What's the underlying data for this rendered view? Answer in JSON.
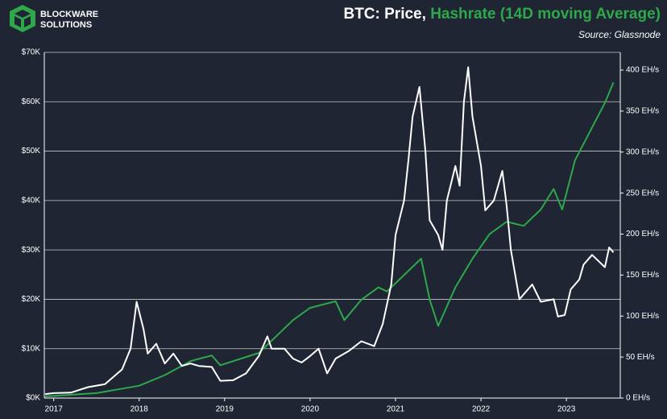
{
  "logo": {
    "line1": "BLOCKWARE",
    "line2": "SOLUTIONS"
  },
  "chart_data": {
    "type": "line",
    "title": "BTC: Price,",
    "source": "Source: Glassnode",
    "xlim": [
      2016.89,
      2023.63
    ],
    "xticks": [
      2017,
      2018,
      2019,
      2020,
      2021,
      2022,
      2023
    ],
    "ylim": [
      0,
      70000
    ],
    "yticks": [
      {
        "value": 0,
        "label": "$0K"
      },
      {
        "value": 10000,
        "label": "$10K"
      },
      {
        "value": 20000,
        "label": "$20K"
      },
      {
        "value": 30000,
        "label": "$30K"
      },
      {
        "value": 40000,
        "label": "$40K"
      },
      {
        "value": 50000,
        "label": "$50K"
      },
      {
        "value": 60000,
        "label": "$60K"
      },
      {
        "value": 70000,
        "label": "$70K"
      }
    ],
    "y2lim": [
      0,
      421.6
    ],
    "y2ticks": [
      {
        "value": 0,
        "label": "0 EH/s"
      },
      {
        "value": 50,
        "label": "50 EH/s"
      },
      {
        "value": 100,
        "label": "100 EH/s"
      },
      {
        "value": 150,
        "label": "150 EH/s"
      },
      {
        "value": 200,
        "label": "200 EH/s"
      },
      {
        "value": 250,
        "label": "250 EH/s"
      },
      {
        "value": 300,
        "label": "300 EH/s"
      },
      {
        "value": 350,
        "label": "350 EH/s"
      },
      {
        "value": 400,
        "label": "400 EH/s"
      }
    ],
    "grid": true,
    "series": [
      {
        "color": "#ffffff",
        "x": [
          2016.9,
          2017.0,
          2017.2,
          2017.4,
          2017.6,
          2017.7,
          2017.8,
          2017.9,
          2017.97,
          2018.05,
          2018.1,
          2018.2,
          2018.3,
          2018.4,
          2018.5,
          2018.6,
          2018.7,
          2018.85,
          2018.95,
          2019.1,
          2019.25,
          2019.4,
          2019.5,
          2019.55,
          2019.7,
          2019.8,
          2019.9,
          2020.0,
          2020.1,
          2020.2,
          2020.3,
          2020.45,
          2020.6,
          2020.75,
          2020.85,
          2020.95,
          2021.0,
          2021.1,
          2021.15,
          2021.2,
          2021.28,
          2021.35,
          2021.4,
          2021.5,
          2021.55,
          2021.6,
          2021.7,
          2021.75,
          2021.8,
          2021.85,
          2021.9,
          2022.0,
          2022.05,
          2022.15,
          2022.25,
          2022.3,
          2022.35,
          2022.45,
          2022.55,
          2022.6,
          2022.7,
          2022.85,
          2022.9,
          2022.98,
          2023.05,
          2023.15,
          2023.2,
          2023.3,
          2023.45,
          2023.5,
          2023.55
        ],
        "values": [
          800,
          1000,
          1100,
          2200,
          2800,
          4300,
          5800,
          10000,
          19500,
          14000,
          9000,
          11000,
          7000,
          9000,
          6500,
          7000,
          6500,
          6300,
          3500,
          3600,
          5000,
          8500,
          12500,
          10000,
          10000,
          8000,
          7200,
          8500,
          10000,
          5000,
          8000,
          9500,
          11500,
          10500,
          15000,
          23000,
          33000,
          40000,
          48000,
          57000,
          63000,
          50000,
          36000,
          33000,
          30000,
          40000,
          47000,
          43000,
          60000,
          67000,
          57000,
          47000,
          38000,
          40000,
          46000,
          39000,
          30000,
          20000,
          22000,
          23000,
          19500,
          20000,
          16500,
          16800,
          22000,
          24000,
          27000,
          29000,
          26500,
          30500,
          29500
        ]
      },
      {
        "name": "Hashrate (14D moving Average)",
        "color": "#2ea84a",
        "axis": "y2",
        "x": [
          2016.9,
          2017.5,
          2018.0,
          2018.3,
          2018.6,
          2018.85,
          2018.95,
          2019.1,
          2019.4,
          2019.6,
          2019.8,
          2020.0,
          2020.3,
          2020.4,
          2020.6,
          2020.8,
          2020.9,
          2021.1,
          2021.3,
          2021.4,
          2021.5,
          2021.7,
          2021.9,
          2022.1,
          2022.3,
          2022.5,
          2022.7,
          2022.85,
          2022.95,
          2023.1,
          2023.3,
          2023.45,
          2023.55
        ],
        "values": [
          2,
          6,
          15,
          28,
          45,
          52,
          40,
          45,
          55,
          75,
          95,
          110,
          118,
          95,
          120,
          135,
          130,
          150,
          170,
          120,
          88,
          135,
          170,
          200,
          215,
          210,
          230,
          255,
          230,
          290,
          330,
          360,
          385
        ]
      }
    ]
  }
}
